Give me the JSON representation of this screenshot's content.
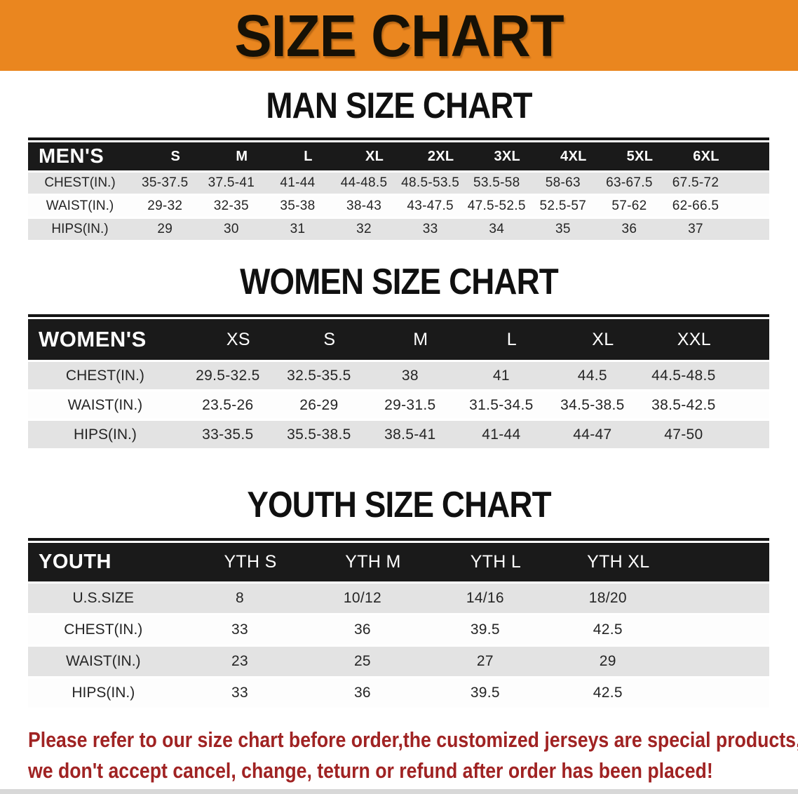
{
  "banner": {
    "title": "SIZE CHART",
    "bg": "#EA861F"
  },
  "sections": [
    {
      "heading": "MAN SIZE CHART",
      "table": {
        "label": "MEN'S",
        "columns": [
          "S",
          "M",
          "L",
          "XL",
          "2XL",
          "3XL",
          "4XL",
          "5XL",
          "6XL"
        ],
        "rows": [
          {
            "label": "CHEST(IN.)",
            "shade": true,
            "values": [
              "35-37.5",
              "37.5-41",
              "41-44",
              "44-48.5",
              "48.5-53.5",
              "53.5-58",
              "58-63",
              "63-67.5",
              "67.5-72"
            ]
          },
          {
            "label": "WAIST(IN.)",
            "shade": false,
            "values": [
              "29-32",
              "32-35",
              "35-38",
              "38-43",
              "43-47.5",
              "47.5-52.5",
              "52.5-57",
              "57-62",
              "62-66.5"
            ]
          },
          {
            "label": "HIPS(IN.)",
            "shade": true,
            "values": [
              "29",
              "30",
              "31",
              "32",
              "33",
              "34",
              "35",
              "36",
              "37"
            ]
          }
        ]
      }
    },
    {
      "heading": "WOMEN SIZE CHART",
      "table": {
        "label": "WOMEN'S",
        "columns": [
          "XS",
          "S",
          "M",
          "L",
          "XL",
          "XXL"
        ],
        "rows": [
          {
            "label": "CHEST(IN.)",
            "shade": true,
            "values": [
              "29.5-32.5",
              "32.5-35.5",
              "38",
              "41",
              "44.5",
              "44.5-48.5"
            ]
          },
          {
            "label": "WAIST(IN.)",
            "shade": false,
            "values": [
              "23.5-26",
              "26-29",
              "29-31.5",
              "31.5-34.5",
              "34.5-38.5",
              "38.5-42.5"
            ]
          },
          {
            "label": "HIPS(IN.)",
            "shade": true,
            "values": [
              "33-35.5",
              "35.5-38.5",
              "38.5-41",
              "41-44",
              "44-47",
              "47-50"
            ]
          }
        ]
      }
    },
    {
      "heading": "YOUTH SIZE CHART",
      "table": {
        "label": "YOUTH",
        "columns": [
          "YTH S",
          "YTH M",
          "YTH L",
          "YTH XL"
        ],
        "rows": [
          {
            "label": "U.S.SIZE",
            "shade": true,
            "values": [
              "8",
              "10/12",
              "14/16",
              "18/20"
            ]
          },
          {
            "label": "CHEST(IN.)",
            "shade": false,
            "values": [
              "33",
              "36",
              "39.5",
              "42.5"
            ]
          },
          {
            "label": "WAIST(IN.)",
            "shade": true,
            "values": [
              "23",
              "25",
              "27",
              "29"
            ]
          },
          {
            "label": "HIPS(IN.)",
            "shade": false,
            "values": [
              "33",
              "36",
              "39.5",
              "42.5"
            ]
          }
        ]
      }
    }
  ],
  "disclaimer": {
    "line1": "Please refer to our size chart before order,the customized jerseys are special products,",
    "line2": "we don't accept cancel, change, teturn or refund after order has been placed!",
    "color": "#A02323"
  }
}
